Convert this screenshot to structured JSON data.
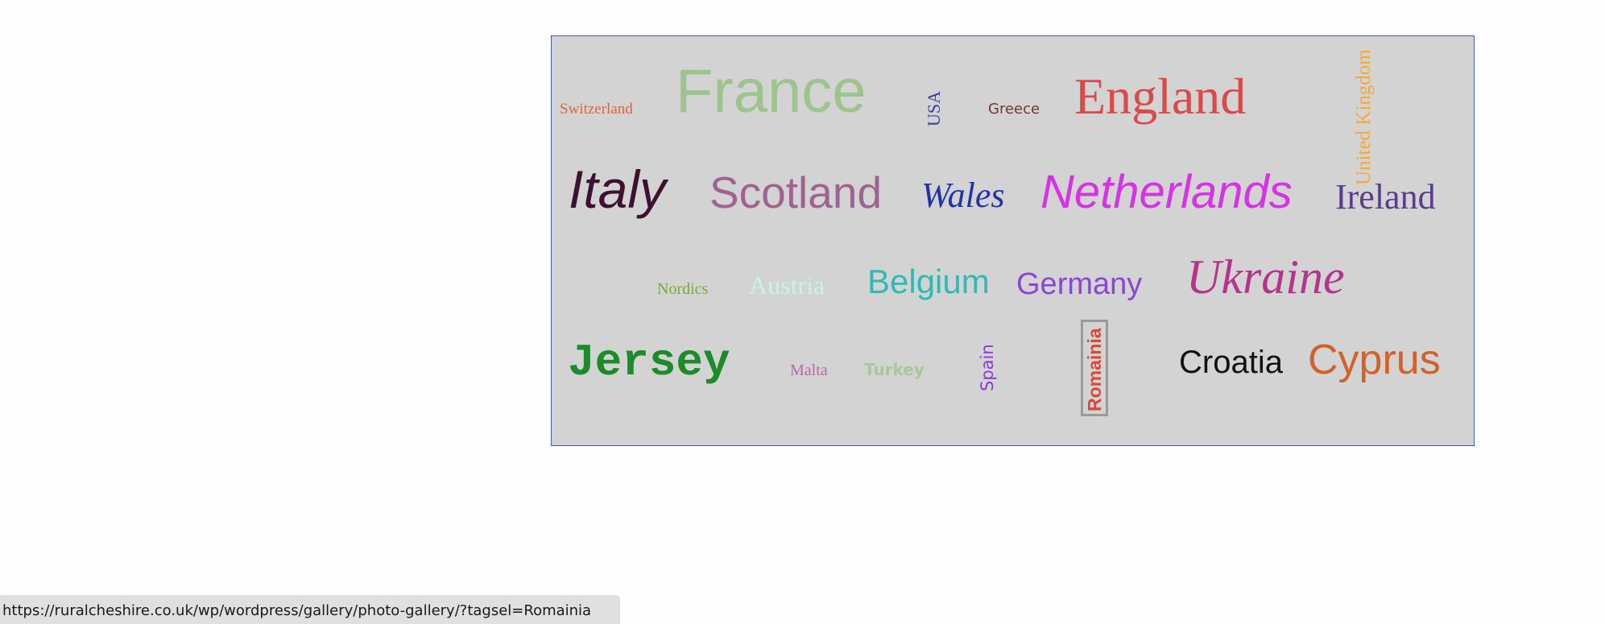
{
  "tags": [
    {
      "label": "Switzerland",
      "color": "#e0633a"
    },
    {
      "label": "France",
      "color": "#9dc48c"
    },
    {
      "label": "USA",
      "color": "#3d3d9e"
    },
    {
      "label": "Greece",
      "color": "#6e3a3a"
    },
    {
      "label": "England",
      "color": "#d94a4a"
    },
    {
      "label": "United Kingdom",
      "color": "#f2a93b"
    },
    {
      "label": "Italy",
      "color": "#3d1230"
    },
    {
      "label": "Scotland",
      "color": "#a0628e"
    },
    {
      "label": "Wales",
      "color": "#2233aa"
    },
    {
      "label": "Netherlands",
      "color": "#d633e6"
    },
    {
      "label": "Ireland",
      "color": "#5a3d8c"
    },
    {
      "label": "Nordics",
      "color": "#7ea83a"
    },
    {
      "label": "Austria",
      "color": "#c8f2ec"
    },
    {
      "label": "Belgium",
      "color": "#2cbcb4"
    },
    {
      "label": "Germany",
      "color": "#8a46d6"
    },
    {
      "label": "Ukraine",
      "color": "#b5338a"
    },
    {
      "label": "Jersey",
      "color": "#1c8c2a"
    },
    {
      "label": "Malta",
      "color": "#b86aa8"
    },
    {
      "label": "Turkey",
      "color": "#a8c89a"
    },
    {
      "label": "Spain",
      "color": "#8a3ad6"
    },
    {
      "label": "Romainia",
      "color": "#d9483a"
    },
    {
      "label": "Croatia",
      "color": "#111111"
    },
    {
      "label": "Cyprus",
      "color": "#d2612a"
    }
  ],
  "status": {
    "url": "https://ruralcheshire.co.uk/wp/wordpress/gallery/photo-gallery/?tagsel=Romainia"
  }
}
